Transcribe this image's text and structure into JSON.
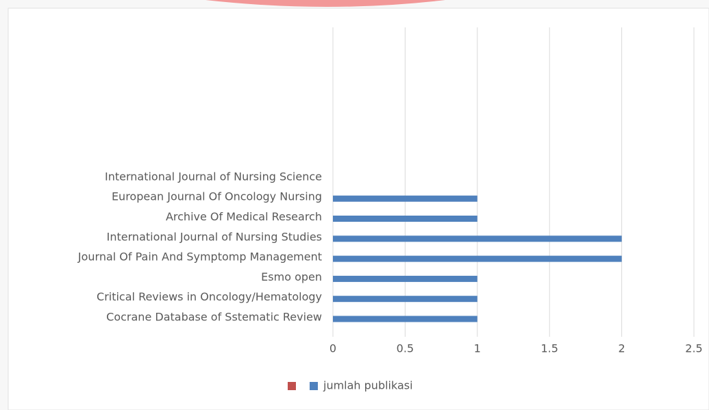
{
  "chart_data": {
    "type": "bar",
    "orientation": "horizontal",
    "categories": [
      "Cocrane Database of Sstematic Review",
      "Critical Reviews in Oncology/Hematology",
      "Esmo open",
      "Journal Of Pain And Symptomp Management",
      "International Journal of Nursing Studies",
      "Archive Of Medical Research",
      "European Journal Of Oncology Nursing",
      "International Journal of Nursing Science"
    ],
    "series": [
      {
        "color": "#c0504d",
        "values": [
          null,
          null,
          null,
          null,
          null,
          null,
          null,
          null
        ]
      },
      {
        "name": "jumlah publikasi",
        "color": "#4f81bd",
        "values": [
          1,
          1,
          1,
          2,
          2,
          1,
          1,
          0
        ]
      }
    ],
    "xlim": [
      0,
      2.5
    ],
    "xticks": [
      0,
      0.5,
      1,
      1.5,
      2,
      2.5
    ],
    "grid": true,
    "legend": "bottom"
  }
}
